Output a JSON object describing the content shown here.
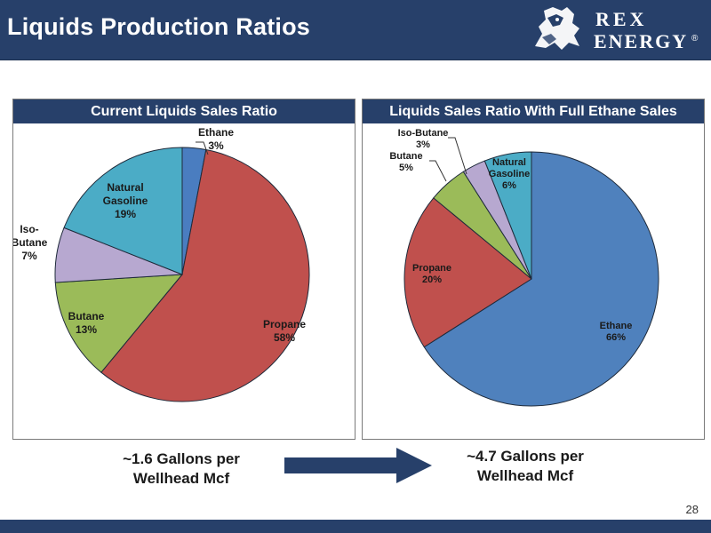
{
  "slide": {
    "title": "Liquids Production Ratios",
    "page_number": "28"
  },
  "logo": {
    "line1": "REX",
    "line2": "ENERGY",
    "mark": "®"
  },
  "captions": {
    "left": [
      "~1.6 Gallons per",
      "Wellhead Mcf"
    ],
    "right": [
      "~4.7 Gallons per",
      "Wellhead Mcf"
    ]
  },
  "colors": {
    "header_bg": "#27406a",
    "arrow": "#27406a"
  },
  "chart_data": [
    {
      "type": "pie",
      "title": "Current Liquids Sales Ratio",
      "start_angle_deg": 0,
      "direction": "clockwise",
      "slices": [
        {
          "label": "Ethane",
          "value": 3,
          "display": "3%",
          "color": "#4a7dc0",
          "label_lines": [
            "Ethane",
            "3%"
          ]
        },
        {
          "label": "Propane",
          "value": 58,
          "display": "58%",
          "color": "#c0504d",
          "label_lines": [
            "Propane",
            "58%"
          ]
        },
        {
          "label": "Butane",
          "value": 13,
          "display": "13%",
          "color": "#9bbb59",
          "label_lines": [
            "Butane",
            "13%"
          ]
        },
        {
          "label": "Iso-Butane",
          "value": 7,
          "display": "7%",
          "color": "#b7a8d0",
          "label_lines": [
            "Iso-",
            "Butane",
            "7%"
          ]
        },
        {
          "label": "Natural Gasoline",
          "value": 19,
          "display": "19%",
          "color": "#4bacc6",
          "label_lines": [
            "Natural",
            "Gasoline",
            "19%"
          ]
        }
      ]
    },
    {
      "type": "pie",
      "title": "Liquids Sales Ratio With Full Ethane Sales",
      "start_angle_deg": 0,
      "direction": "clockwise",
      "slices": [
        {
          "label": "Ethane",
          "value": 66,
          "display": "66%",
          "color": "#4f81bd",
          "label_lines": [
            "Ethane",
            "66%"
          ]
        },
        {
          "label": "Propane",
          "value": 20,
          "display": "20%",
          "color": "#c0504d",
          "label_lines": [
            "Propane",
            "20%"
          ]
        },
        {
          "label": "Butane",
          "value": 5,
          "display": "5%",
          "color": "#9bbb59",
          "label_lines": [
            "Butane",
            "5%"
          ]
        },
        {
          "label": "Iso-Butane",
          "value": 3,
          "display": "3%",
          "color": "#b7a8d0",
          "label_lines": [
            "Iso-Butane",
            "3%"
          ]
        },
        {
          "label": "Natural Gasoline",
          "value": 6,
          "display": "6%",
          "color": "#4bacc6",
          "label_lines": [
            "Natural",
            "Gasoline",
            "6%"
          ]
        }
      ]
    }
  ]
}
